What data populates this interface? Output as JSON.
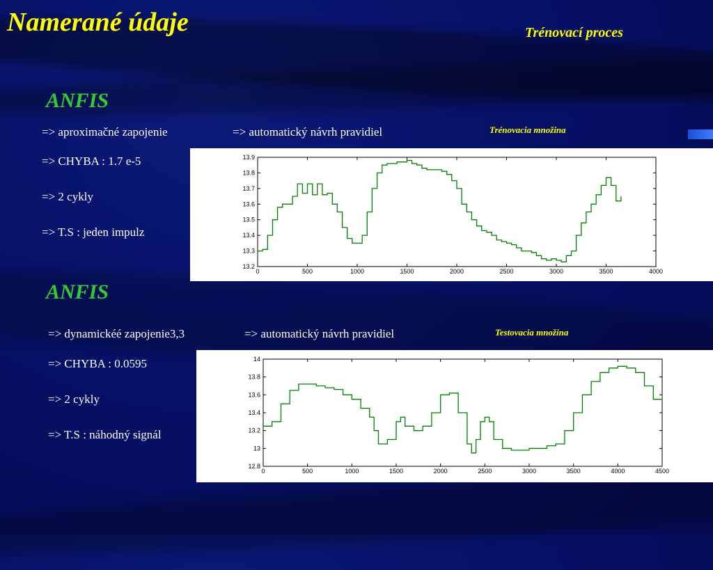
{
  "header": {
    "title": "Namerané údaje",
    "subtitle": "Trénovací proces"
  },
  "section1": {
    "heading": "ANFIS",
    "line1a": "=> aproximačné zapojenie",
    "line1b": "=> automatický návrh pravidiel",
    "set_label": "Trénovacia množina",
    "error": "=> CHYBA : 1.7 e-5",
    "cycles": "=> 2 cykly",
    "ts": "=> T.S : jeden impulz"
  },
  "section2": {
    "heading": "ANFIS",
    "line1a": "=> dynamickéé zapojenie3,3",
    "line1b": "=> automatický návrh pravidiel",
    "set_label": "Testovacia množina",
    "error": "=> CHYBA : 0.0595",
    "cycles": "=> 2 cykly",
    "ts": "=> T.S : náhodný signál"
  },
  "colors": {
    "title": "#ffff00",
    "heading": "#33cc33",
    "bullet": "#ffffff",
    "line": "#008000",
    "fit": "#1f4fbf"
  },
  "chart_data": [
    {
      "type": "line",
      "xlim": [
        0,
        4000
      ],
      "ylim": [
        13.2,
        13.9
      ],
      "xticks": [
        "0",
        "500",
        "1000",
        "1500",
        "2000",
        "2500",
        "3000",
        "3500",
        "4000"
      ],
      "yticks": [
        "13.9",
        "13.8",
        "13.7",
        "13.6",
        "13.5",
        "13.4",
        "13.3",
        "13.2"
      ],
      "series": [
        {
          "x": [
            0,
            50,
            100,
            150,
            200,
            250,
            300,
            350,
            400,
            450,
            500,
            550,
            600,
            650,
            700,
            750,
            800,
            850,
            900,
            950,
            1000,
            1050,
            1100,
            1150,
            1200,
            1250,
            1300,
            1350,
            1400,
            1450,
            1500,
            1550,
            1600,
            1650,
            1700,
            1750,
            1800,
            1850,
            1900,
            1950,
            2000,
            2050,
            2100,
            2150,
            2200,
            2250,
            2300,
            2350,
            2400,
            2450,
            2500,
            2550,
            2600,
            2650,
            2700,
            2750,
            2800,
            2850,
            2900,
            2950,
            3000,
            3050,
            3100,
            3150,
            3200,
            3250,
            3300,
            3350,
            3400,
            3450,
            3500,
            3550,
            3600,
            3650
          ],
          "values": [
            13.3,
            13.31,
            13.4,
            13.5,
            13.58,
            13.6,
            13.6,
            13.65,
            13.73,
            13.67,
            13.73,
            13.66,
            13.73,
            13.66,
            13.67,
            13.6,
            13.55,
            13.45,
            13.38,
            13.35,
            13.35,
            13.4,
            13.55,
            13.7,
            13.8,
            13.85,
            13.86,
            13.86,
            13.87,
            13.87,
            13.88,
            13.86,
            13.85,
            13.83,
            13.82,
            13.82,
            13.82,
            13.81,
            13.79,
            13.75,
            13.7,
            13.6,
            13.55,
            13.5,
            13.46,
            13.43,
            13.42,
            13.4,
            13.37,
            13.36,
            13.35,
            13.34,
            13.32,
            13.3,
            13.3,
            13.29,
            13.27,
            13.25,
            13.24,
            13.25,
            13.24,
            13.23,
            13.27,
            13.3,
            13.4,
            13.48,
            13.55,
            13.6,
            13.66,
            13.72,
            13.77,
            13.72,
            13.62,
            13.65
          ]
        }
      ]
    },
    {
      "type": "line",
      "xlim": [
        0,
        4500
      ],
      "ylim": [
        12.8,
        14
      ],
      "xticks": [
        "0",
        "500",
        "1000",
        "1500",
        "2000",
        "2500",
        "3000",
        "3500",
        "4000",
        "4500"
      ],
      "yticks": [
        "14",
        "13.8",
        "13.6",
        "13.4",
        "13.2",
        "13",
        "12.8"
      ],
      "series": [
        {
          "x": [
            0,
            100,
            200,
            300,
            400,
            500,
            600,
            700,
            800,
            900,
            1000,
            1100,
            1200,
            1250,
            1300,
            1400,
            1500,
            1550,
            1600,
            1700,
            1800,
            1900,
            2000,
            2100,
            2200,
            2300,
            2350,
            2400,
            2450,
            2500,
            2550,
            2600,
            2700,
            2800,
            3000,
            3200,
            3300,
            3400,
            3500,
            3600,
            3700,
            3800,
            3900,
            4000,
            4100,
            4200,
            4300,
            4400,
            4500
          ],
          "values": [
            13.25,
            13.3,
            13.5,
            13.65,
            13.72,
            13.72,
            13.7,
            13.68,
            13.66,
            13.6,
            13.55,
            13.45,
            13.35,
            13.2,
            13.05,
            13.1,
            13.3,
            13.35,
            13.25,
            13.2,
            13.25,
            13.4,
            13.6,
            13.62,
            13.4,
            13.05,
            12.95,
            13.1,
            13.3,
            13.35,
            13.3,
            13.1,
            13.0,
            12.98,
            13.0,
            13.03,
            13.05,
            13.2,
            13.4,
            13.6,
            13.75,
            13.85,
            13.9,
            13.92,
            13.9,
            13.85,
            13.7,
            13.55,
            13.6
          ]
        }
      ]
    }
  ]
}
